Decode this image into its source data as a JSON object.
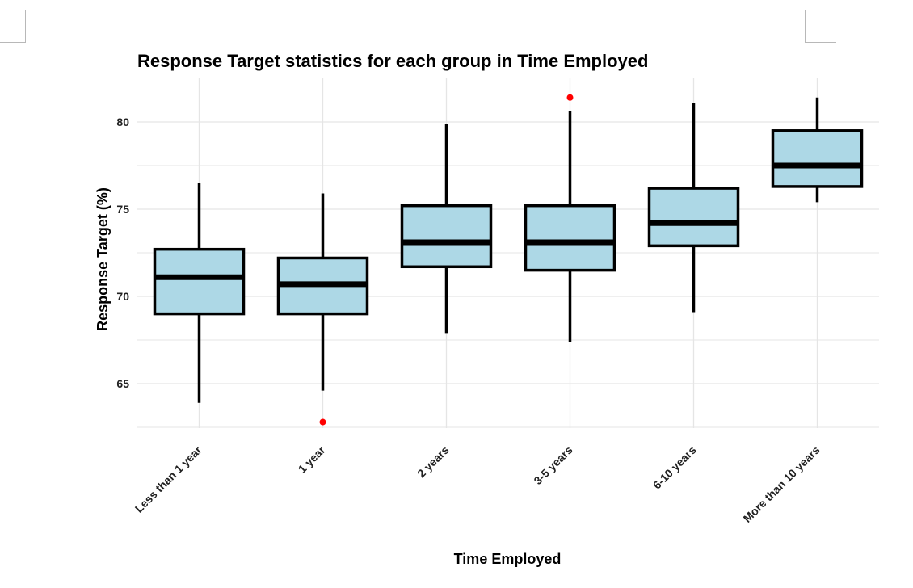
{
  "chart_data": {
    "type": "box",
    "title": "Response Target statistics for each group in Time Employed",
    "xlabel": "Time Employed",
    "ylabel": "Response Target (%)",
    "ylim": [
      62.4,
      82.3
    ],
    "yticks": [
      65,
      70,
      75,
      80
    ],
    "grid": true,
    "categories": [
      "Less than 1 year",
      "1 year",
      "2 years",
      "3-5 years",
      "6-10 years",
      "More than 10 years"
    ],
    "boxes": [
      {
        "min": 63.9,
        "q1": 69.0,
        "median": 71.1,
        "q3": 72.7,
        "max": 76.5,
        "outliers": []
      },
      {
        "min": 64.6,
        "q1": 69.0,
        "median": 70.7,
        "q3": 72.2,
        "max": 75.9,
        "outliers": [
          62.8
        ]
      },
      {
        "min": 67.9,
        "q1": 71.7,
        "median": 73.1,
        "q3": 75.2,
        "max": 79.9,
        "outliers": []
      },
      {
        "min": 67.4,
        "q1": 71.5,
        "median": 73.1,
        "q3": 75.2,
        "max": 80.6,
        "outliers": [
          81.4
        ]
      },
      {
        "min": 69.1,
        "q1": 72.9,
        "median": 74.2,
        "q3": 76.2,
        "max": 81.1,
        "outliers": []
      },
      {
        "min": 75.4,
        "q1": 76.3,
        "median": 77.5,
        "q3": 79.5,
        "max": 81.4,
        "outliers": []
      }
    ],
    "colors": {
      "box_fill": "#add8e6",
      "box_stroke": "#000000",
      "outlier": "#ff0000",
      "grid": "#e5e5e5"
    }
  }
}
